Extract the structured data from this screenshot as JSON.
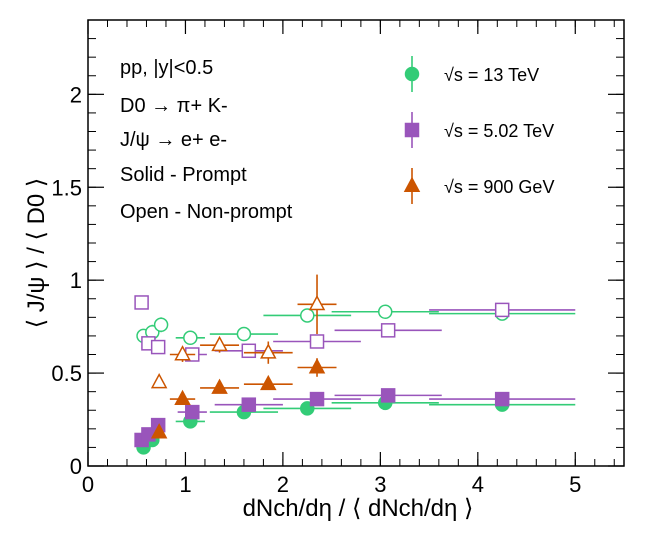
{
  "chart_data": {
    "type": "scatter",
    "xlabel": "dNch/dη / ⟨ dNch/dη ⟩",
    "ylabel": "⟨ J/ψ ⟩ / ⟨ D0 ⟩",
    "xlim": [
      0,
      5.5
    ],
    "ylim": [
      0,
      2.4
    ],
    "x_ticks": [
      0,
      1,
      2,
      3,
      4,
      5
    ],
    "y_ticks": [
      0,
      0.5,
      1,
      1.5,
      2
    ],
    "grid": false,
    "annotations": [
      "pp, |y|<0.5",
      "D0 → π+ K-",
      "J/ψ → e+ e-",
      "Solid - Prompt",
      "Open - Non-prompt"
    ],
    "legend": {
      "placement": "top-right",
      "entries": [
        {
          "label": "√s = 13 TeV",
          "marker": "circle",
          "color": "#33cc77"
        },
        {
          "label": "√s = 5.02 TeV",
          "marker": "square",
          "color": "#9955bb"
        },
        {
          "label": "√s = 900 GeV",
          "marker": "triangle",
          "color": "#cc5500"
        }
      ]
    },
    "series": [
      {
        "name": "√s = 13 TeV Prompt",
        "marker": "circle",
        "filled": true,
        "color": "#33cc77",
        "x": [
          0.57,
          0.66,
          1.05,
          1.6,
          2.25,
          3.05,
          4.25
        ],
        "y": [
          0.1,
          0.14,
          0.24,
          0.29,
          0.31,
          0.34,
          0.33
        ],
        "xerr_low": [
          0.0,
          0.0,
          0.15,
          0.35,
          0.45,
          0.55,
          0.75
        ],
        "xerr_high": [
          0.0,
          0.0,
          0.15,
          0.35,
          0.45,
          0.55,
          0.75
        ],
        "yerr": [
          0.0,
          0.0,
          0.01,
          0.01,
          0.01,
          0.01,
          0.01
        ]
      },
      {
        "name": "√s = 13 TeV Non-prompt",
        "marker": "circle",
        "filled": false,
        "color": "#33cc77",
        "x": [
          0.57,
          0.66,
          0.75,
          1.05,
          1.6,
          2.25,
          3.05,
          4.25
        ],
        "y": [
          0.7,
          0.72,
          0.76,
          0.69,
          0.71,
          0.81,
          0.83,
          0.82
        ],
        "xerr_low": [
          0.0,
          0.0,
          0.0,
          0.15,
          0.35,
          0.45,
          0.55,
          0.75
        ],
        "xerr_high": [
          0.0,
          0.0,
          0.0,
          0.15,
          0.35,
          0.45,
          0.55,
          0.75
        ],
        "yerr": [
          0.0,
          0.04,
          0.04,
          0.02,
          0.02,
          0.03,
          0.02,
          0.02
        ]
      },
      {
        "name": "√s = 5.02 TeV Prompt",
        "marker": "square",
        "filled": true,
        "color": "#9955bb",
        "x": [
          0.55,
          0.62,
          0.72,
          1.07,
          1.65,
          2.35,
          3.08,
          4.25
        ],
        "y": [
          0.14,
          0.17,
          0.22,
          0.29,
          0.33,
          0.36,
          0.38,
          0.36
        ],
        "xerr_low": [
          0.0,
          0.0,
          0.0,
          0.15,
          0.35,
          0.45,
          0.55,
          0.75
        ],
        "xerr_high": [
          0.0,
          0.0,
          0.0,
          0.15,
          0.35,
          0.45,
          0.55,
          0.75
        ],
        "yerr": [
          0.0,
          0.01,
          0.01,
          0.01,
          0.01,
          0.01,
          0.01,
          0.01
        ]
      },
      {
        "name": "√s = 5.02 TeV Non-prompt",
        "marker": "square",
        "filled": false,
        "color": "#9955bb",
        "x": [
          0.55,
          0.62,
          0.72,
          1.07,
          1.65,
          2.35,
          3.08,
          4.25
        ],
        "y": [
          0.88,
          0.66,
          0.64,
          0.6,
          0.62,
          0.67,
          0.73,
          0.84
        ],
        "xerr_low": [
          0.0,
          0.0,
          0.0,
          0.15,
          0.35,
          0.45,
          0.55,
          0.75
        ],
        "xerr_high": [
          0.0,
          0.0,
          0.0,
          0.15,
          0.35,
          0.45,
          0.55,
          0.75
        ],
        "yerr": [
          0.0,
          0.03,
          0.03,
          0.02,
          0.02,
          0.03,
          0.02,
          0.02
        ]
      },
      {
        "name": "√s = 900 GeV Prompt",
        "marker": "triangle",
        "filled": true,
        "color": "#cc5500",
        "x": [
          0.73,
          0.97,
          1.35,
          1.85,
          2.35
        ],
        "y": [
          0.18,
          0.36,
          0.42,
          0.44,
          0.53
        ],
        "xerr_low": [
          0.0,
          0.13,
          0.2,
          0.25,
          0.2
        ],
        "xerr_high": [
          0.0,
          0.13,
          0.2,
          0.25,
          0.2
        ],
        "yerr": [
          0.02,
          0.02,
          0.02,
          0.03,
          0.05
        ]
      },
      {
        "name": "√s = 900 GeV Non-prompt",
        "marker": "triangle",
        "filled": false,
        "color": "#cc5500",
        "x": [
          0.73,
          0.97,
          1.35,
          1.85,
          2.35
        ],
        "y": [
          0.45,
          0.6,
          0.65,
          0.61,
          0.87
        ],
        "xerr_low": [
          0.0,
          0.13,
          0.2,
          0.25,
          0.2
        ],
        "xerr_high": [
          0.0,
          0.13,
          0.2,
          0.25,
          0.2
        ],
        "yerr": [
          0.03,
          0.04,
          0.04,
          0.06,
          0.16
        ]
      }
    ]
  }
}
